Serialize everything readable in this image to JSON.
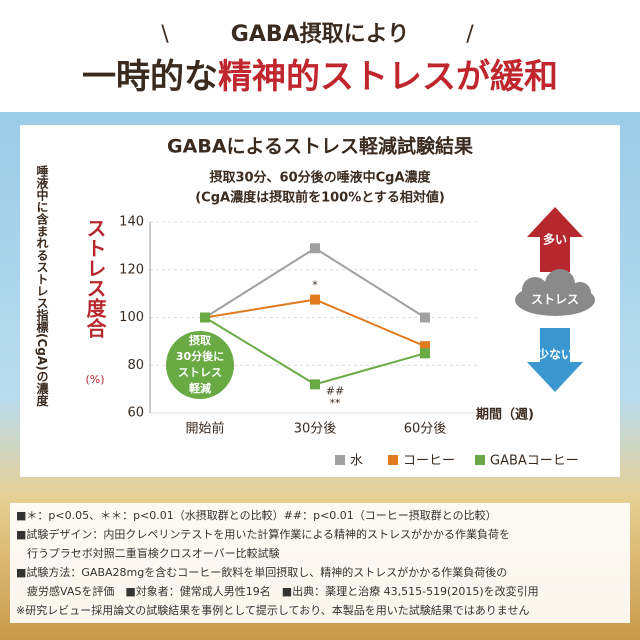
{
  "header": {
    "deco_left": "\\",
    "lead": "GABA摂取により",
    "deco_right": "/",
    "title_dark": "一時的な",
    "title_red": "精神的ストレスが緩和"
  },
  "chart_data": {
    "type": "line",
    "title": "GABAによるストレス軽減試験結果",
    "subtitle": [
      "摂取30分、60分後の唾液中CgA濃度",
      "(CgA濃度は摂取前を100%とする相対値)"
    ],
    "y_label": "唾液中に含まれるストレス指標(CgA)の濃度",
    "y_label2": "ストレス度合",
    "y_unit": "(%)",
    "x_label": "期間（週)",
    "categories": [
      "開始前",
      "30分後",
      "60分後"
    ],
    "ylim": [
      60,
      140
    ],
    "yticks": [
      60,
      80,
      100,
      120,
      140
    ],
    "series": [
      {
        "name": "水",
        "color": "#a0a0a0",
        "values": [
          100,
          129,
          100
        ]
      },
      {
        "name": "コーヒー",
        "color": "#e07b1f",
        "values": [
          100,
          107.5,
          88
        ]
      },
      {
        "name": "GABAコーヒー",
        "color": "#6aaa44",
        "values": [
          100,
          72,
          85
        ]
      }
    ],
    "annotations": [
      "*",
      "##",
      "**"
    ],
    "callout": [
      "摂取",
      "30分後に",
      "ストレス",
      "軽減"
    ],
    "scale_labels": {
      "high": "多い",
      "mid": "ストレス",
      "low": "少ない"
    }
  },
  "footnotes": [
    "■＊：p<0.05、＊＊：p<0.01（水摂取群との比較）##：p<0.01（コーヒー摂取群との比較）",
    "■試験デザイン：内田クレペリンテストを用いた計算作業による精神的ストレスがかかる作業負荷を",
    "　行うプラセボ対照二重盲検クロスオーバー比較試験",
    "■試験方法：GABA28mgを含むコーヒー飲料を単回摂取し、精神的ストレスがかかる作業負荷後の",
    "　疲労感VASを評価　■対象者：健常成人男性19名　■出典：薬理と治療 43,515-519(2015)を改変引用",
    "※研究レビュー採用論文の試験結果を事例として提示しており、本製品を用いた試験結果ではありません"
  ]
}
